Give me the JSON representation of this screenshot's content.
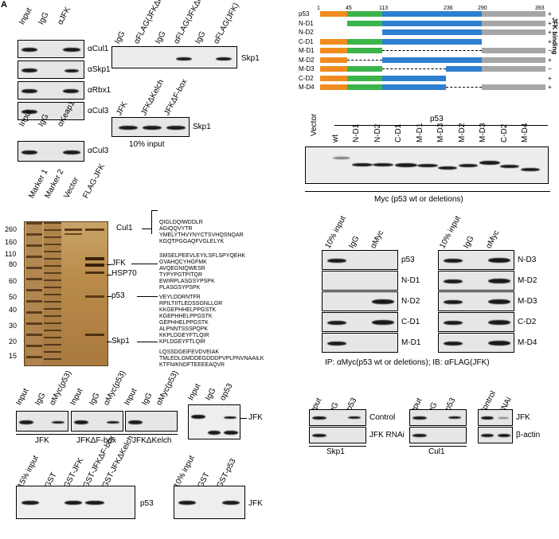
{
  "panel_letter": "A",
  "p1": {
    "cols": [
      "Input",
      "IgG",
      "αJFK"
    ],
    "rows": [
      "αCul1",
      "αSkp1",
      "αRbx1",
      "αCul3"
    ],
    "cols2": [
      "Input",
      "IgG",
      "αKeap1"
    ],
    "row2": "αCul3"
  },
  "p2": {
    "cols": [
      "IgG",
      "αFLAG(JFKΔF-box)",
      "IgG",
      "αFLAG(JFKΔKelch)",
      "IgG",
      "αFLAG(JFK)"
    ],
    "label": "Skp1",
    "cols2": [
      "JFK",
      "JFKΔKelch",
      "JFKΔF-box"
    ],
    "label2": "Skp1",
    "caption": "10% input"
  },
  "gel": {
    "lanes": [
      "Marker 1",
      "Marker 2",
      "Vector",
      "FLAG-JFK"
    ],
    "mw": [
      "260",
      "160",
      "110",
      "80",
      "60",
      "50",
      "40",
      "30",
      "20",
      "15"
    ],
    "bands": [
      "Cul1",
      "JFK",
      "HSP70",
      "p53",
      "Skp1"
    ],
    "seq_cul1": [
      "QIGLDQIWDDLR",
      "AGIQQVYTR",
      "YMELYTHVYNYCTSVHQSNQAR",
      "KGQTPGGAQFVGLELYK"
    ],
    "seq_jfk": [
      "SMSELPEEVLEYILSFLSPYQEHK",
      "GVAHQCYHGFMK",
      "AVQEGNIQWESR",
      "TYPYPGTPITQR",
      "EWIRPLASGSYPSPK",
      "PLASGSYPSPK"
    ],
    "seq_p53": [
      "VEYLDDRNTFR",
      "RPILTIITLEDSSGNLLGR",
      "KKGEPHHELPPGSTK",
      "KGEPHHELPPGSTK",
      "GEPHHELPPGSTK",
      "ALPNNTSSSPQPK",
      "KKPLDGEYFTLQIR",
      "KPLDGEYFTLQIR"
    ],
    "seq_skp1": [
      "LQSSDGEIFEVDVEIAK",
      "TMLEDLGMDDEGDDDPVPLPNVNAAILK",
      "KTFNIKNDFTEEEEAQVR"
    ]
  },
  "domain": {
    "ticks": [
      "1",
      "45",
      "113",
      "236",
      "290",
      "393"
    ],
    "constructs": [
      {
        "name": "p53",
        "binding": "+"
      },
      {
        "name": "N-D1",
        "binding": "+"
      },
      {
        "name": "N-D2",
        "binding": "+"
      },
      {
        "name": "C-D1",
        "binding": "+"
      },
      {
        "name": "M-D1",
        "binding": "−"
      },
      {
        "name": "M-D2",
        "binding": "+"
      },
      {
        "name": "M-D3",
        "binding": "−"
      },
      {
        "name": "C-D2",
        "binding": "+"
      },
      {
        "name": "M-D4",
        "binding": "+"
      }
    ],
    "side_label": "JFK binding"
  },
  "myc": {
    "group": "p53",
    "lanes": [
      "Vector",
      "wt",
      "N-D1",
      "N-D2",
      "C-D1",
      "M-D1",
      "M-D3",
      "M-D2",
      "M-D3",
      "C-D2",
      "M-D4"
    ],
    "caption": "Myc (p53 wt or deletions)"
  },
  "ip": {
    "cols": [
      "10% input",
      "IgG",
      "αMyc"
    ],
    "left_rows": [
      "p53",
      "N-D1",
      "N-D2",
      "C-D1",
      "M-D1"
    ],
    "right_rows": [
      "N-D3",
      "M-D2",
      "M-D3",
      "C-D2",
      "M-D4"
    ],
    "caption": "IP: αMyc(p53 wt or deletions); IB: αFLAG(JFK)"
  },
  "bot1": {
    "cols": [
      "Input",
      "IgG",
      "αMyc(p53)",
      "Input",
      "IgG",
      "αMyc(p53)",
      "Input",
      "IgG",
      "αMyc(p53)"
    ],
    "groups": [
      "JFK",
      "JFKΔF-box",
      "JFKΔKelch"
    ],
    "cols2": [
      "Input",
      "IgG",
      "αp53"
    ],
    "label2": "JFK"
  },
  "bot2": {
    "cols": [
      "Input",
      "IgG",
      "αp53"
    ],
    "rows": [
      "Control",
      "JFK RNAi"
    ],
    "group": "Skp1",
    "cols2": [
      "Input",
      "IgG",
      "αp53"
    ],
    "group2": "Cul1",
    "cols3": [
      "Control",
      "RNAi"
    ],
    "rows3": [
      "JFK",
      "β-actin"
    ]
  },
  "gst": {
    "cols": [
      "15% input",
      "GST",
      "GST-JFK",
      "GST-JFKΔF-box",
      "GST-JFKΔKelch"
    ],
    "label": "p53",
    "cols2": [
      "10% input",
      "GST",
      "GST-p53"
    ],
    "label2": "JFK"
  }
}
